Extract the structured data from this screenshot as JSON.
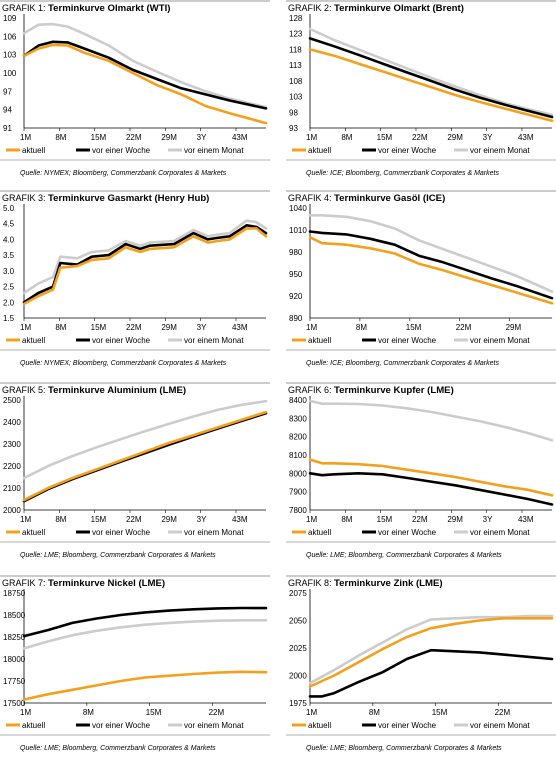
{
  "colors": {
    "aktuell": "#f4a01c",
    "woche": "#000000",
    "monat": "#cccccc",
    "rule": "#999999"
  },
  "legend": [
    "aktuell",
    "vor einer Woche",
    "vor einem Monat"
  ],
  "chart_data": [
    {
      "type": "line",
      "prefix": "GRAFIK 1:",
      "title": "Terminkurve Olmarkt (WTI)",
      "source": "Quelle: NYMEX; Bloomberg, Commerzbank Corporates & Markets",
      "x_ticks": [
        "1M",
        "8M",
        "15M",
        "22M",
        "29M",
        "3Y",
        "43M"
      ],
      "y_ticks": [
        "109",
        "106",
        "103",
        "100",
        "97",
        "94",
        "91"
      ],
      "ylim": [
        91,
        109
      ],
      "series": [
        {
          "name": "aktuell",
          "x": [
            0,
            0.06,
            0.12,
            0.18,
            0.25,
            0.35,
            0.45,
            0.55,
            0.65,
            0.75,
            0.85,
            1.0
          ],
          "values": [
            102.8,
            104.0,
            104.6,
            104.5,
            103.3,
            102.0,
            100.0,
            98.0,
            96.5,
            94.6,
            93.4,
            91.8
          ]
        },
        {
          "name": "vor einer Woche",
          "x": [
            0,
            0.06,
            0.12,
            0.18,
            0.25,
            0.35,
            0.45,
            0.55,
            0.65,
            0.75,
            0.85,
            1.0
          ],
          "values": [
            102.8,
            104.5,
            105.1,
            105.0,
            104.0,
            102.5,
            100.5,
            99.0,
            97.5,
            96.5,
            95.5,
            94.2
          ]
        },
        {
          "name": "vor einem Monat",
          "x": [
            0,
            0.06,
            0.12,
            0.18,
            0.25,
            0.35,
            0.45,
            0.55,
            0.65,
            0.75,
            0.85,
            1.0
          ],
          "values": [
            106.5,
            107.9,
            108.0,
            107.6,
            106.4,
            104.5,
            102.0,
            100.2,
            98.5,
            97.0,
            95.8,
            94.4
          ]
        }
      ]
    },
    {
      "type": "line",
      "prefix": "GRAFIK 2:",
      "title": "Terminkurve Olmarkt (Brent)",
      "source": "Quelle: ICE; Bloomberg, Commerzbank Corporates & Markets",
      "x_ticks": [
        "1M",
        "8M",
        "15M",
        "22M",
        "29M",
        "3Y",
        "43M"
      ],
      "y_ticks": [
        "128",
        "123",
        "118",
        "113",
        "108",
        "103",
        "98",
        "93"
      ],
      "ylim": [
        93,
        128
      ],
      "series": [
        {
          "name": "aktuell",
          "x": [
            0,
            0.1,
            0.2,
            0.3,
            0.4,
            0.5,
            0.6,
            0.7,
            0.8,
            0.9,
            1.0
          ],
          "values": [
            118.0,
            116.0,
            113.5,
            111.0,
            108.5,
            106.0,
            103.5,
            101.3,
            99.3,
            97.3,
            95.3
          ]
        },
        {
          "name": "vor einer Woche",
          "x": [
            0,
            0.1,
            0.2,
            0.3,
            0.4,
            0.5,
            0.6,
            0.7,
            0.8,
            0.9,
            1.0
          ],
          "values": [
            121.5,
            119.0,
            116.3,
            113.5,
            110.7,
            108.0,
            105.2,
            102.7,
            100.5,
            98.5,
            96.5
          ]
        },
        {
          "name": "vor einem Monat",
          "x": [
            0,
            0.1,
            0.2,
            0.3,
            0.4,
            0.5,
            0.6,
            0.7,
            0.8,
            0.9,
            1.0
          ],
          "values": [
            124.5,
            121.0,
            118.0,
            115.0,
            112.0,
            109.0,
            106.2,
            103.5,
            101.0,
            99.0,
            97.2
          ]
        }
      ]
    },
    {
      "type": "line",
      "prefix": "GRAFIK 3:",
      "title": "Terminkurve Gasmarkt (Henry Hub)",
      "source": "Quelle: NYMEX; Bloomberg, Commerzbank Corporates & Markets",
      "x_ticks": [
        "1M",
        "8M",
        "15M",
        "22M",
        "29M",
        "3Y",
        "43M"
      ],
      "y_ticks": [
        "5.0",
        "4.5",
        "4.0",
        "3.5",
        "3.0",
        "2.5",
        "2.0",
        "1.5"
      ],
      "ylim": [
        1.5,
        5.0
      ],
      "series": [
        {
          "name": "aktuell",
          "x": [
            0,
            0.06,
            0.12,
            0.15,
            0.22,
            0.28,
            0.35,
            0.42,
            0.48,
            0.52,
            0.62,
            0.7,
            0.76,
            0.8,
            0.85,
            0.92,
            0.96,
            1.0
          ],
          "values": [
            1.95,
            2.2,
            2.4,
            3.1,
            3.15,
            3.35,
            3.4,
            3.75,
            3.6,
            3.7,
            3.75,
            4.1,
            3.9,
            3.95,
            4.0,
            4.35,
            4.35,
            4.1
          ]
        },
        {
          "name": "vor einer Woche",
          "x": [
            0,
            0.06,
            0.12,
            0.15,
            0.22,
            0.28,
            0.35,
            0.42,
            0.48,
            0.52,
            0.62,
            0.7,
            0.76,
            0.8,
            0.85,
            0.92,
            0.96,
            1.0
          ],
          "values": [
            2.0,
            2.3,
            2.5,
            3.25,
            3.2,
            3.45,
            3.5,
            3.85,
            3.7,
            3.8,
            3.85,
            4.2,
            4.0,
            4.05,
            4.1,
            4.45,
            4.4,
            4.2
          ]
        },
        {
          "name": "vor einem Monat",
          "x": [
            0,
            0.06,
            0.12,
            0.15,
            0.22,
            0.28,
            0.35,
            0.42,
            0.48,
            0.52,
            0.62,
            0.7,
            0.76,
            0.8,
            0.85,
            0.92,
            0.96,
            1.0
          ],
          "values": [
            2.3,
            2.6,
            2.8,
            3.45,
            3.4,
            3.6,
            3.65,
            3.95,
            3.8,
            3.9,
            3.95,
            4.3,
            4.1,
            4.15,
            4.2,
            4.6,
            4.55,
            4.35
          ]
        }
      ]
    },
    {
      "type": "line",
      "prefix": "GRAFIK 4:",
      "title": "Terminkurve Gasöl (ICE)",
      "source": "Quelle: ICE; Bloomberg, Commerzbank Corporates & Markets",
      "x_ticks": [
        "1M",
        "8M",
        "15M",
        "22M",
        "29M"
      ],
      "y_ticks": [
        "1040",
        "1010",
        "980",
        "950",
        "920",
        "890"
      ],
      "ylim": [
        890,
        1040
      ],
      "series": [
        {
          "name": "aktuell",
          "x": [
            0,
            0.05,
            0.15,
            0.25,
            0.35,
            0.45,
            0.55,
            0.65,
            0.75,
            0.85,
            1.0
          ],
          "values": [
            1000,
            992,
            990,
            985,
            978,
            964,
            955,
            945,
            935,
            925,
            910
          ]
        },
        {
          "name": "vor einer Woche",
          "x": [
            0,
            0.05,
            0.15,
            0.25,
            0.35,
            0.45,
            0.55,
            0.65,
            0.75,
            0.85,
            1.0
          ],
          "values": [
            1008,
            1006,
            1004,
            998,
            990,
            975,
            966,
            955,
            944,
            934,
            917
          ]
        },
        {
          "name": "vor einem Monat",
          "x": [
            0,
            0.05,
            0.15,
            0.25,
            0.35,
            0.45,
            0.55,
            0.65,
            0.75,
            0.85,
            1.0
          ],
          "values": [
            1030,
            1030,
            1028,
            1022,
            1012,
            996,
            984,
            972,
            960,
            948,
            926
          ]
        }
      ]
    },
    {
      "type": "line",
      "prefix": "GRAFIK 5:",
      "title": "Terminkurve Aluminium (LME)",
      "source": "Quelle: LME; Bloomberg, Commerzbank Corporates & Markets",
      "x_ticks": [
        "1M",
        "8M",
        "15M",
        "22M",
        "29M",
        "3Y",
        "43M"
      ],
      "y_ticks": [
        "2500",
        "2400",
        "2300",
        "2200",
        "2100",
        "2000"
      ],
      "ylim": [
        2000,
        2500
      ],
      "series": [
        {
          "name": "aktuell",
          "x": [
            0,
            0.1,
            0.2,
            0.3,
            0.4,
            0.5,
            0.6,
            0.7,
            0.8,
            0.9,
            1.0
          ],
          "values": [
            2045,
            2100,
            2145,
            2185,
            2225,
            2265,
            2305,
            2340,
            2375,
            2410,
            2445
          ]
        },
        {
          "name": "vor einer Woche",
          "x": [
            0,
            0.1,
            0.2,
            0.3,
            0.4,
            0.5,
            0.6,
            0.7,
            0.8,
            0.9,
            1.0
          ],
          "values": [
            2040,
            2095,
            2140,
            2180,
            2220,
            2258,
            2297,
            2334,
            2370,
            2405,
            2440
          ]
        },
        {
          "name": "vor einem Monat",
          "x": [
            0,
            0.1,
            0.2,
            0.3,
            0.4,
            0.5,
            0.6,
            0.7,
            0.8,
            0.9,
            1.0
          ],
          "values": [
            2145,
            2200,
            2245,
            2285,
            2322,
            2358,
            2392,
            2425,
            2455,
            2478,
            2495
          ]
        }
      ]
    },
    {
      "type": "line",
      "prefix": "GRAFIK 6:",
      "title": "Terminkurve Kupfer (LME)",
      "source": "Quelle: LME; Bloomberg, Commerzbank Corporates & Markets",
      "x_ticks": [
        "1M",
        "8M",
        "15M",
        "22M",
        "29M",
        "3Y",
        "43M"
      ],
      "y_ticks": [
        "8400",
        "8300",
        "8200",
        "8100",
        "8000",
        "7900",
        "7800"
      ],
      "ylim": [
        7800,
        8400
      ],
      "series": [
        {
          "name": "aktuell",
          "x": [
            0,
            0.05,
            0.1,
            0.2,
            0.3,
            0.4,
            0.5,
            0.6,
            0.7,
            0.8,
            0.9,
            1.0
          ],
          "values": [
            8075,
            8055,
            8055,
            8050,
            8040,
            8020,
            8000,
            7980,
            7955,
            7930,
            7910,
            7880
          ]
        },
        {
          "name": "vor einer Woche",
          "x": [
            0,
            0.05,
            0.1,
            0.2,
            0.3,
            0.4,
            0.5,
            0.6,
            0.7,
            0.8,
            0.9,
            1.0
          ],
          "values": [
            8000,
            7990,
            7995,
            8000,
            7995,
            7975,
            7955,
            7935,
            7910,
            7885,
            7860,
            7830
          ]
        },
        {
          "name": "vor einem Monat",
          "x": [
            0,
            0.05,
            0.1,
            0.2,
            0.3,
            0.4,
            0.5,
            0.6,
            0.7,
            0.8,
            0.9,
            1.0
          ],
          "values": [
            8395,
            8380,
            8380,
            8378,
            8370,
            8355,
            8335,
            8310,
            8285,
            8255,
            8220,
            8180
          ]
        }
      ]
    },
    {
      "type": "line",
      "prefix": "GRAFIK 7:",
      "title": "Terminkurve Nickel (LME)",
      "source": "Quelle: LME; Bloomberg, Commerzbank Corporates & Markets",
      "x_ticks": [
        "1M",
        "8M",
        "15M",
        "22M"
      ],
      "y_ticks": [
        "18750",
        "18500",
        "18250",
        "18000",
        "17750",
        "17500"
      ],
      "ylim": [
        17500,
        18750
      ],
      "series": [
        {
          "name": "aktuell",
          "x": [
            0,
            0.1,
            0.2,
            0.3,
            0.4,
            0.5,
            0.6,
            0.7,
            0.8,
            0.9,
            1.0
          ],
          "values": [
            17540,
            17600,
            17650,
            17700,
            17750,
            17790,
            17810,
            17830,
            17845,
            17855,
            17850
          ]
        },
        {
          "name": "vor einer Woche",
          "x": [
            0,
            0.1,
            0.2,
            0.3,
            0.4,
            0.5,
            0.6,
            0.7,
            0.8,
            0.9,
            1.0
          ],
          "values": [
            18260,
            18330,
            18410,
            18460,
            18500,
            18530,
            18550,
            18565,
            18575,
            18580,
            18578
          ]
        },
        {
          "name": "vor einem Monat",
          "x": [
            0,
            0.1,
            0.2,
            0.3,
            0.4,
            0.5,
            0.6,
            0.7,
            0.8,
            0.9,
            1.0
          ],
          "values": [
            18120,
            18200,
            18270,
            18320,
            18360,
            18390,
            18410,
            18425,
            18435,
            18440,
            18440
          ]
        }
      ]
    },
    {
      "type": "line",
      "prefix": "GRAFIK 8:",
      "title": "Terminkurve Zink (LME)",
      "source": "Quelle: LME; Bloomberg, Commerzbank Corporates & Markets",
      "x_ticks": [
        "1M",
        "8M",
        "15M",
        "22M"
      ],
      "y_ticks": [
        "2075",
        "2050",
        "2025",
        "2000",
        "1975"
      ],
      "ylim": [
        1975,
        2075
      ],
      "series": [
        {
          "name": "aktuell",
          "x": [
            0,
            0.1,
            0.2,
            0.3,
            0.4,
            0.5,
            0.6,
            0.7,
            0.8,
            0.9,
            1.0
          ],
          "values": [
            1990,
            2000,
            2012,
            2024,
            2035,
            2043,
            2047,
            2050,
            2052,
            2052,
            2052
          ]
        },
        {
          "name": "vor einer Woche",
          "x": [
            0,
            0.05,
            0.1,
            0.2,
            0.3,
            0.4,
            0.5,
            0.6,
            0.7,
            0.8,
            0.9,
            1.0
          ],
          "values": [
            1981,
            1981,
            1984,
            1994,
            2003,
            2015,
            2023,
            2022,
            2021,
            2019,
            2017,
            2015
          ]
        },
        {
          "name": "vor einem Monat",
          "x": [
            0,
            0.1,
            0.2,
            0.3,
            0.4,
            0.5,
            0.6,
            0.7,
            0.8,
            0.9,
            1.0
          ],
          "values": [
            1993,
            2005,
            2018,
            2030,
            2042,
            2051,
            2052,
            2053,
            2053,
            2054,
            2054
          ]
        }
      ]
    }
  ]
}
